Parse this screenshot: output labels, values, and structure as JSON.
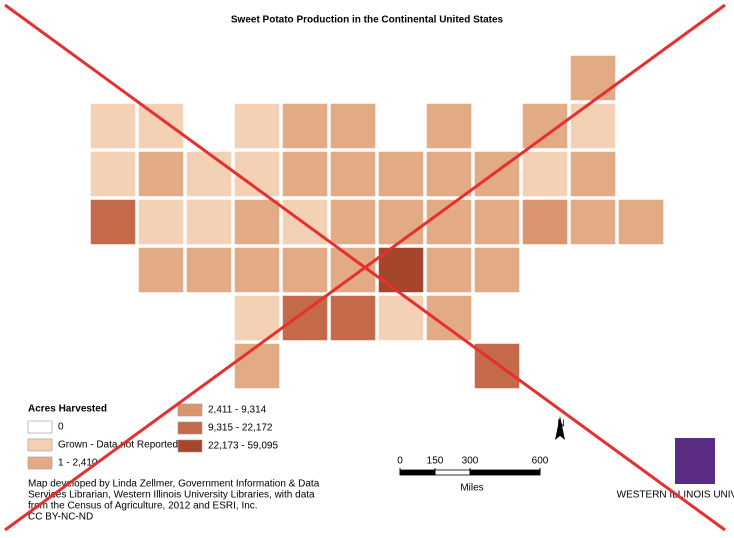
{
  "title": "Sweet Potato Production in the Continental United States",
  "legend": {
    "title": "Acres Harvested",
    "items": [
      {
        "label": "0",
        "color": "#ffffff"
      },
      {
        "label": "Grown - Data not Reported",
        "color": "#f4d0b5"
      },
      {
        "label": "1 - 2,410",
        "color": "#e3aa86"
      },
      {
        "label": "2,411 - 9,314",
        "color": "#da9470"
      },
      {
        "label": "9,315 - 22,172",
        "color": "#c4694a"
      },
      {
        "label": "22,173 - 59,095",
        "color": "#a5452b"
      }
    ]
  },
  "states": [
    1,
    1,
    0,
    1,
    2,
    2,
    2,
    2,
    2,
    1,
    2,
    1,
    1,
    1,
    2,
    2,
    2,
    2,
    2,
    1,
    2,
    4,
    1,
    1,
    2,
    1,
    2,
    2,
    2,
    2,
    3,
    2,
    2,
    2,
    2,
    2,
    2,
    2,
    5,
    2,
    2,
    1,
    4,
    4,
    1,
    2,
    2,
    4
  ],
  "scale": {
    "ticks": [
      0,
      150,
      300,
      600
    ],
    "unit": "Miles"
  },
  "north": "N",
  "credits": [
    "Map developed by Linda Zellmer, Government Information & Data",
    "Services Librarian, Western Illinois University Libraries, with data",
    "from the Census of Agriculture, 2012 and ESRI, Inc.",
    "CC BY-NC-ND"
  ],
  "logo": "WESTERN ILLINOIS UNIVERSITY"
}
